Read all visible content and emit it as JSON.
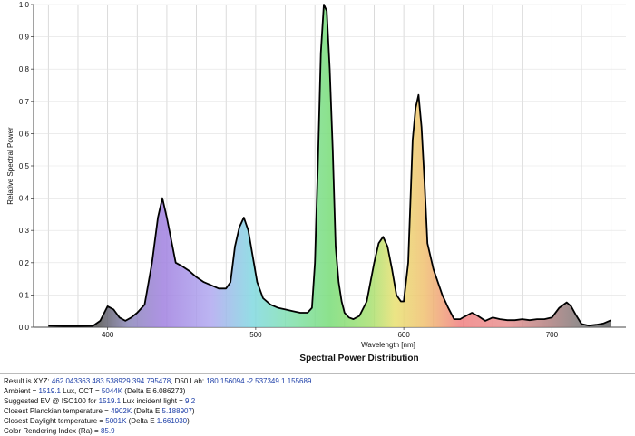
{
  "chart_data": {
    "type": "area",
    "title": "Spectral Power Distribution",
    "xlabel": "Wavelength [nm]",
    "ylabel": "Relative Spectral Power",
    "xlim": [
      350,
      750
    ],
    "ylim": [
      0,
      1.0
    ],
    "x_ticks": [
      400,
      500,
      600,
      700
    ],
    "y_ticks": [
      0.0,
      0.1,
      0.2,
      0.3,
      0.4,
      0.5,
      0.6,
      0.7,
      0.8,
      0.9,
      1.0
    ],
    "x_tick_labels": [
      "400",
      "500",
      "600",
      "700"
    ],
    "y_tick_labels": [
      "0.0",
      "0.1",
      "0.2",
      "0.3",
      "0.4",
      "0.5",
      "0.6",
      "0.7",
      "0.8",
      "0.9",
      "1.0"
    ],
    "grid": true,
    "line_color": "#000000",
    "series": [
      {
        "x": [
          360,
          370,
          380,
          390,
          395,
          400,
          404,
          408,
          412,
          416,
          420,
          425,
          430,
          434,
          437,
          440,
          443,
          446,
          450,
          455,
          460,
          465,
          470,
          475,
          480,
          483,
          486,
          489,
          492,
          495,
          498,
          501,
          505,
          510,
          515,
          520,
          525,
          530,
          535,
          538,
          540,
          542,
          544,
          546,
          548,
          550,
          552,
          554,
          556,
          558,
          560,
          563,
          566,
          570,
          575,
          580,
          583,
          586,
          589,
          592,
          595,
          598,
          600,
          603,
          606,
          608,
          610,
          612,
          614,
          616,
          618,
          620,
          623,
          626,
          630,
          634,
          638,
          642,
          646,
          650,
          655,
          660,
          665,
          670,
          675,
          680,
          685,
          690,
          695,
          700,
          705,
          710,
          713,
          716,
          720,
          725,
          730,
          735,
          740
        ],
        "y": [
          0.005,
          0.003,
          0.003,
          0.004,
          0.02,
          0.065,
          0.055,
          0.03,
          0.02,
          0.03,
          0.045,
          0.07,
          0.2,
          0.34,
          0.4,
          0.34,
          0.27,
          0.2,
          0.19,
          0.175,
          0.155,
          0.14,
          0.13,
          0.12,
          0.12,
          0.14,
          0.25,
          0.31,
          0.34,
          0.3,
          0.22,
          0.14,
          0.09,
          0.07,
          0.06,
          0.055,
          0.05,
          0.045,
          0.045,
          0.06,
          0.2,
          0.5,
          0.85,
          1.0,
          0.98,
          0.8,
          0.55,
          0.25,
          0.14,
          0.08,
          0.045,
          0.03,
          0.025,
          0.035,
          0.08,
          0.2,
          0.26,
          0.28,
          0.25,
          0.18,
          0.1,
          0.08,
          0.08,
          0.2,
          0.58,
          0.68,
          0.72,
          0.62,
          0.45,
          0.26,
          0.22,
          0.18,
          0.14,
          0.1,
          0.06,
          0.025,
          0.025,
          0.035,
          0.045,
          0.035,
          0.02,
          0.03,
          0.025,
          0.022,
          0.022,
          0.025,
          0.022,
          0.025,
          0.025,
          0.03,
          0.06,
          0.077,
          0.065,
          0.04,
          0.01,
          0.005,
          0.008,
          0.012,
          0.022
        ]
      }
    ]
  },
  "results": {
    "line1_label": "Result is XYZ: ",
    "line1_xyz": "462.043363 483.538929 394.795478",
    "line1_mid": ", D50 Lab: ",
    "line1_lab": "180.156094 -2.537349 1.155689",
    "line2_label": "Ambient = ",
    "line2_lux": "1519.1",
    "line2_mid": " Lux, CCT = ",
    "line2_cct": "5044K",
    "line2_delta": " (Delta E 6.086273)",
    "line3_label": "Suggested EV @ ISO100 for ",
    "line3_lux": "1519.1",
    "line3_mid": " Lux incident light = ",
    "line3_ev": "9.2",
    "line4_label": "Closest Planckian temperature = ",
    "line4_temp": "4902K",
    "line4_delta_label": " (Delta E ",
    "line4_delta": "5.188907",
    "line4_end": ")",
    "line5_label": "Closest Daylight temperature  = ",
    "line5_temp": "5001K",
    "line5_delta_label": " (Delta E ",
    "line5_delta": "1.661030",
    "line5_end": ")",
    "line6_label": "Color Rendering Index (Ra) = ",
    "line6_cri": "85.9"
  }
}
